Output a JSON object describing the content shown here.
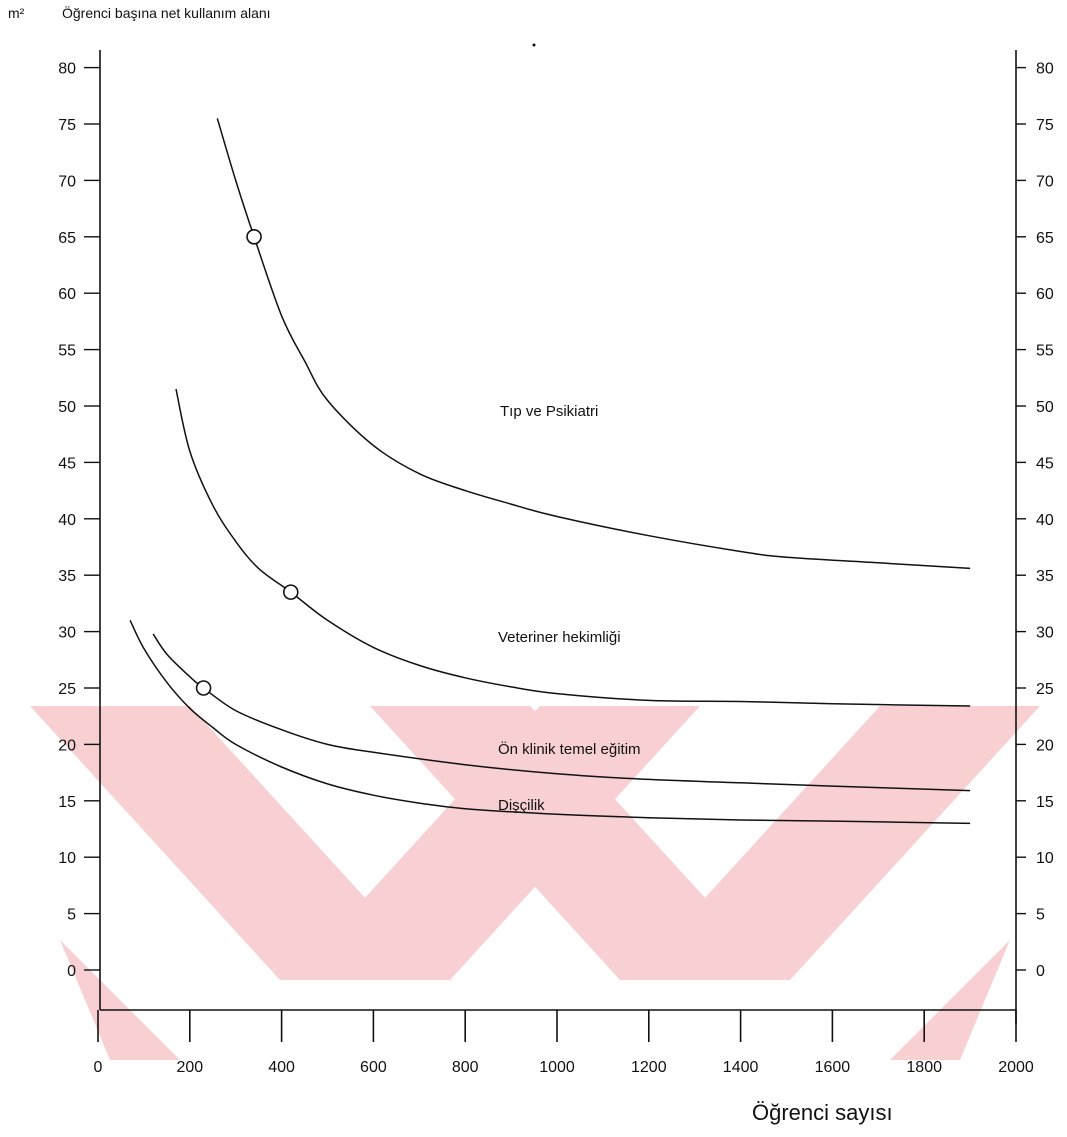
{
  "chart_data": {
    "type": "line",
    "y_unit": "m²",
    "ylabel": "Öğrenci başına net kullanım alanı",
    "xlabel": "Öğrenci sayısı",
    "ylim": [
      0,
      80
    ],
    "xlim": [
      0,
      2000
    ],
    "y_ticks": [
      "0",
      "5",
      "10",
      "15",
      "20",
      "25",
      "30",
      "35",
      "40",
      "45",
      "50",
      "55",
      "60",
      "65",
      "70",
      "75",
      "80"
    ],
    "x_ticks": [
      "0",
      "200",
      "400",
      "600",
      "800",
      "1000",
      "1200",
      "1400",
      "1600",
      "1800",
      "2000"
    ],
    "grid": false,
    "series": [
      {
        "name": "Tıp ve Psikiatri",
        "x": [
          260,
          300,
          340,
          400,
          450,
          500,
          600,
          700,
          800,
          900,
          1000,
          1200,
          1400,
          1500,
          1700,
          1900
        ],
        "y": [
          75.5,
          70,
          65,
          58,
          54,
          50.5,
          46.5,
          44,
          42.5,
          41.3,
          40.2,
          38.5,
          37.1,
          36.6,
          36.1,
          35.6
        ],
        "markers": [
          {
            "x": 340,
            "y": 65
          }
        ]
      },
      {
        "name": "Veteriner hekimliği",
        "x": [
          170,
          200,
          250,
          300,
          350,
          420,
          500,
          600,
          700,
          800,
          900,
          1000,
          1200,
          1400,
          1600,
          1900
        ],
        "y": [
          51.5,
          46,
          41.2,
          38,
          35.6,
          33.5,
          31,
          28.6,
          27,
          25.9,
          25.1,
          24.5,
          23.9,
          23.8,
          23.6,
          23.4
        ],
        "markers": [
          {
            "x": 420,
            "y": 33.5
          }
        ]
      },
      {
        "name": "Ön klinik temel eğitim",
        "x": [
          120,
          150,
          200,
          230,
          300,
          400,
          500,
          600,
          800,
          1000,
          1200,
          1400,
          1600,
          1900
        ],
        "y": [
          29.8,
          28,
          26,
          25,
          23,
          21.3,
          20,
          19.3,
          18.2,
          17.4,
          16.9,
          16.6,
          16.3,
          15.9
        ],
        "markers": [
          {
            "x": 230,
            "y": 25
          }
        ]
      },
      {
        "name": "Dişçilik",
        "x": [
          70,
          100,
          150,
          200,
          250,
          300,
          400,
          500,
          600,
          700,
          800,
          1000,
          1200,
          1400,
          1600,
          1900
        ],
        "y": [
          31,
          28.5,
          25.5,
          23.2,
          21.5,
          20,
          18,
          16.5,
          15.5,
          14.8,
          14.3,
          13.8,
          13.5,
          13.3,
          13.2,
          13
        ]
      }
    ]
  },
  "watermark": {
    "color": "#f5c4c8"
  }
}
